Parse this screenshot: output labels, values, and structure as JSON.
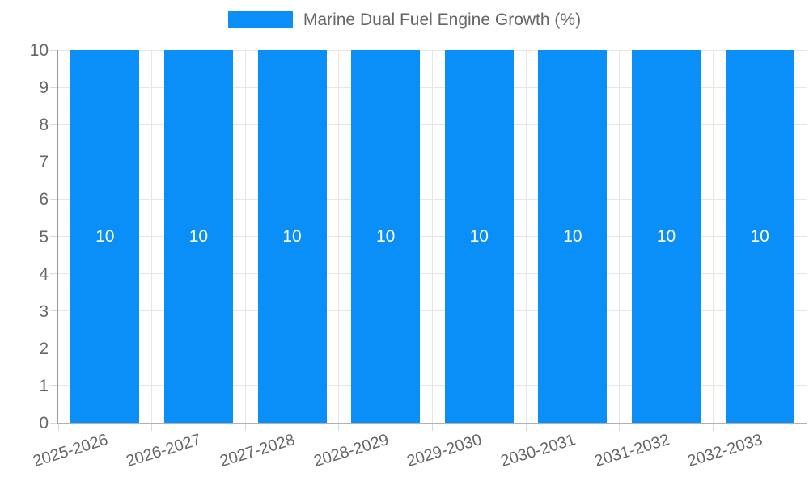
{
  "legend": {
    "items": [
      {
        "label": "Marine Dual Fuel Engine Growth (%)",
        "color": "#0a8ff9"
      }
    ]
  },
  "chart_data": {
    "type": "bar",
    "title": "Marine Dual Fuel Engine Growth (%)",
    "categories": [
      "2025-2026",
      "2026-2027",
      "2027-2028",
      "2028-2029",
      "2029-2030",
      "2030-2031",
      "2031-2032",
      "2032-2033"
    ],
    "values": [
      10,
      10,
      10,
      10,
      10,
      10,
      10,
      10
    ],
    "bar_value_labels": [
      "10",
      "10",
      "10",
      "10",
      "10",
      "10",
      "10",
      "10"
    ],
    "xlabel": "",
    "ylabel": "",
    "ylim": [
      0,
      10
    ],
    "y_ticks": [
      0,
      1,
      2,
      3,
      4,
      5,
      6,
      7,
      8,
      9,
      10
    ],
    "grid": true,
    "legend_position": "top",
    "colors": {
      "bar": "#0a8ff9",
      "grid_line": "#e6e6e6",
      "axis_line": "#9e9e9e",
      "tick_text": "#666666",
      "bar_label_text": "#ffffff"
    }
  }
}
